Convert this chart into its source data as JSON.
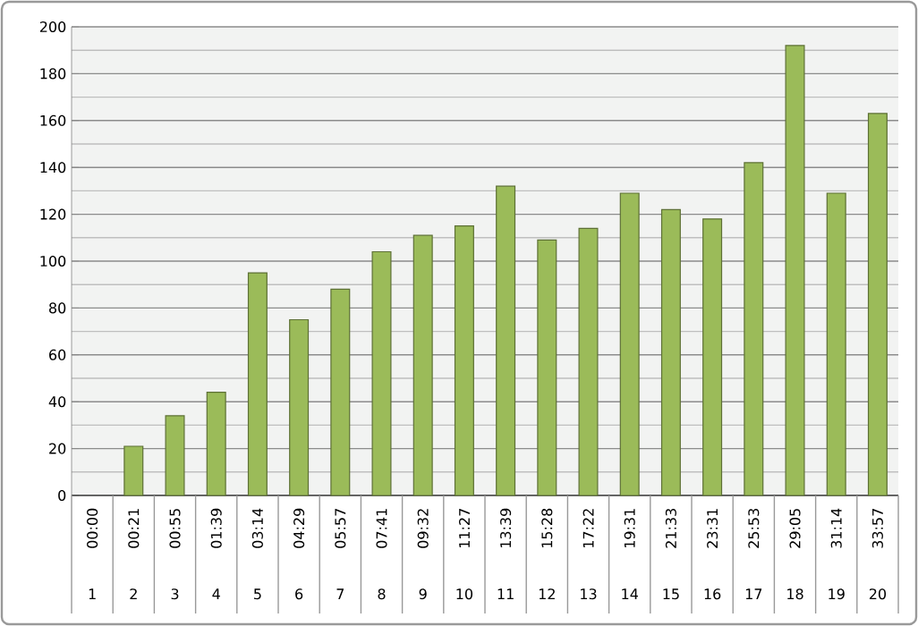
{
  "chart_data": {
    "type": "bar",
    "categories": [
      "00:00",
      "00:21",
      "00:55",
      "01:39",
      "03:14",
      "04:29",
      "05:57",
      "07:41",
      "09:32",
      "11:27",
      "13:39",
      "15:28",
      "17:22",
      "19:31",
      "21:33",
      "23:31",
      "25:53",
      "29:05",
      "31:14",
      "33:57"
    ],
    "values": [
      0,
      21,
      34,
      44,
      95,
      75,
      88,
      104,
      111,
      115,
      132,
      109,
      114,
      129,
      122,
      118,
      142,
      192,
      129,
      163
    ],
    "color": "#9bbb59",
    "annotations": [
      "1",
      "2",
      "3",
      "4",
      "5",
      "6",
      "7",
      "8",
      "9",
      "10",
      "11",
      "12",
      "13",
      "14",
      "15",
      "16",
      "17",
      "18",
      "19",
      "20"
    ],
    "ylim": [
      0,
      200
    ],
    "yticks": [
      0,
      20,
      40,
      60,
      80,
      100,
      120,
      140,
      160,
      180,
      200
    ],
    "grid": "y"
  }
}
